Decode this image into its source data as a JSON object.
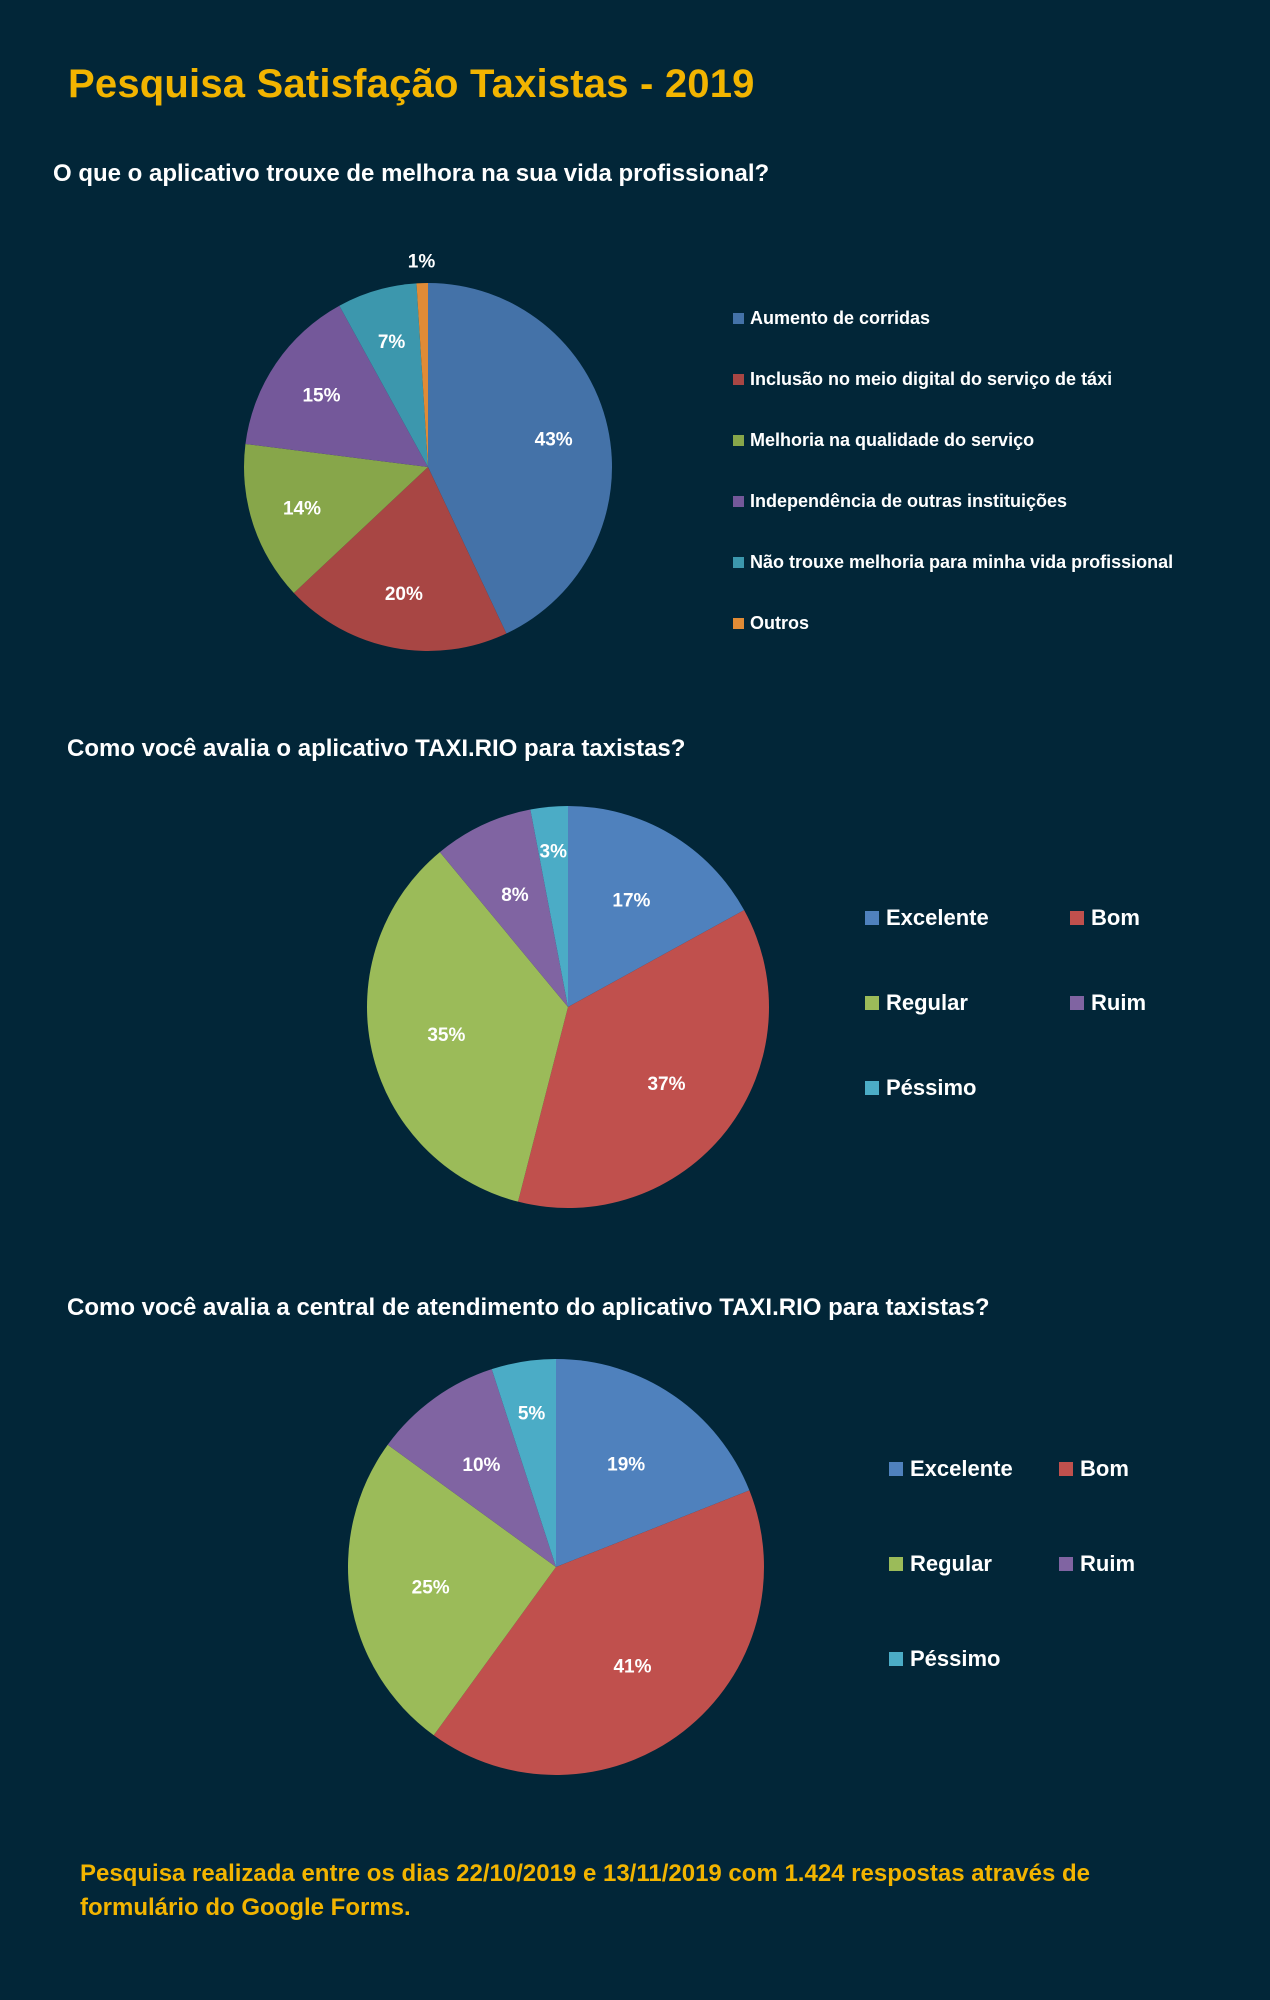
{
  "page": {
    "title": "Pesquisa Satisfação Taxistas - 2019",
    "footer": "Pesquisa realizada entre os dias 22/10/2019 e 13/11/2019 com 1.424 respostas através de formulário do Google Forms.",
    "colors": {
      "background": "#022638",
      "accent": "#f2b400",
      "text": "#ffffff"
    }
  },
  "chart_data": [
    {
      "type": "pie",
      "title": "O que o aplicativo trouxe de melhora na sua vida profissional?",
      "categories": [
        "Aumento de corridas",
        "Inclusão no meio digital do serviço de táxi",
        "Melhoria na qualidade do serviço",
        "Independência de outras instituições",
        "Não trouxe melhoria para minha vida profissional",
        "Outros"
      ],
      "values": [
        43,
        20,
        14,
        15,
        7,
        1
      ],
      "labels": [
        "43%",
        "20%",
        "14%",
        "15%",
        "7%",
        "1%"
      ],
      "colors": [
        "#4472a8",
        "#a84644",
        "#87a64a",
        "#74589a",
        "#3c97ad",
        "#e08b36"
      ],
      "legend_position": "right"
    },
    {
      "type": "pie",
      "title": "Como você avalia o aplicativo TAXI.RIO para taxistas?",
      "categories": [
        "Excelente",
        "Bom",
        "Regular",
        "Ruim",
        "Péssimo"
      ],
      "values": [
        17,
        37,
        35,
        8,
        3
      ],
      "labels": [
        "17%",
        "37%",
        "35%",
        "8%",
        "3%"
      ],
      "colors": [
        "#4f81bd",
        "#c0504d",
        "#9bbb59",
        "#8064a2",
        "#4bacc6"
      ],
      "legend_position": "right"
    },
    {
      "type": "pie",
      "title": "Como você avalia a central de atendimento do aplicativo TAXI.RIO para taxistas?",
      "categories": [
        "Excelente",
        "Bom",
        "Regular",
        "Ruim",
        "Péssimo"
      ],
      "values": [
        19,
        41,
        25,
        10,
        5
      ],
      "labels": [
        "19%",
        "41%",
        "25%",
        "10%",
        "5%"
      ],
      "colors": [
        "#4f81bd",
        "#c0504d",
        "#9bbb59",
        "#8064a2",
        "#4bacc6"
      ],
      "legend_position": "right"
    }
  ]
}
